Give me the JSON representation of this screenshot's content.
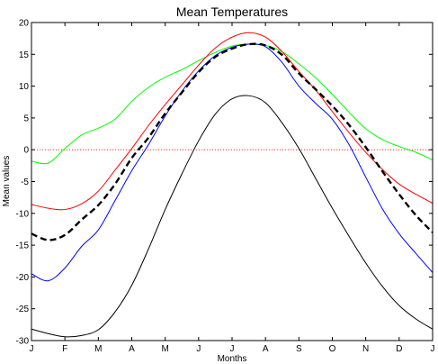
{
  "chart_data": {
    "type": "line",
    "title": "Mean Temperatures",
    "xlabel": "Months",
    "ylabel": "Mean values",
    "xlim": [
      0,
      12
    ],
    "ylim": [
      -30,
      20
    ],
    "x_ticks": [
      {
        "value": 0,
        "label": "J"
      },
      {
        "value": 1,
        "label": "F"
      },
      {
        "value": 2,
        "label": "M"
      },
      {
        "value": 3,
        "label": "A"
      },
      {
        "value": 4,
        "label": "M"
      },
      {
        "value": 5,
        "label": "J"
      },
      {
        "value": 6,
        "label": "J"
      },
      {
        "value": 7,
        "label": "A"
      },
      {
        "value": 8,
        "label": "S"
      },
      {
        "value": 9,
        "label": "O"
      },
      {
        "value": 10,
        "label": "N"
      },
      {
        "value": 11,
        "label": "D"
      },
      {
        "value": 12,
        "label": "J"
      }
    ],
    "y_ticks": [
      20,
      15,
      10,
      5,
      0,
      -5,
      -10,
      -15,
      -20,
      -25,
      -30
    ],
    "grid": false,
    "reference_lines": [
      {
        "y": 0,
        "color": "#ff0000",
        "style": "dotted"
      }
    ],
    "series": [
      {
        "color": "#00ff00",
        "style": "solid",
        "x": [
          0,
          0.5,
          1,
          1.5,
          2,
          2.5,
          3,
          3.5,
          4,
          4.5,
          5,
          5.5,
          6,
          6.5,
          7,
          7.5,
          8,
          8.5,
          9,
          9.5,
          10,
          10.5,
          11,
          11.5,
          12
        ],
        "y": [
          -1.8,
          -2.1,
          0.2,
          2.3,
          3.4,
          4.8,
          7.6,
          9.8,
          11.4,
          12.6,
          14.0,
          15.3,
          16.3,
          16.6,
          16.4,
          15.4,
          13.5,
          11.3,
          8.7,
          5.9,
          3.3,
          1.6,
          0.5,
          -0.4,
          -1.6
        ]
      },
      {
        "color": "#ff0000",
        "style": "solid",
        "x": [
          0,
          0.5,
          1,
          1.5,
          2,
          2.5,
          3,
          3.5,
          4,
          4.5,
          5,
          5.5,
          6,
          6.5,
          7,
          7.5,
          8,
          8.5,
          9,
          9.5,
          10,
          10.5,
          11,
          11.5,
          12
        ],
        "y": [
          -8.6,
          -9.2,
          -9.4,
          -8.5,
          -6.5,
          -3.2,
          0.2,
          3.8,
          7.1,
          10.2,
          13.3,
          16.0,
          17.7,
          18.4,
          17.7,
          15.4,
          12.3,
          9.4,
          6.0,
          2.7,
          -0.4,
          -3.1,
          -5.4,
          -7.0,
          -8.4
        ]
      },
      {
        "color": "#0000ff",
        "style": "solid",
        "x": [
          0,
          0.5,
          1,
          1.5,
          2,
          2.5,
          3,
          3.5,
          4,
          4.5,
          5,
          5.5,
          6,
          6.5,
          7,
          7.5,
          8,
          8.5,
          9,
          9.5,
          10,
          10.5,
          11,
          11.5,
          12
        ],
        "y": [
          -19.5,
          -20.6,
          -18.6,
          -15.2,
          -12.6,
          -8.0,
          -3.3,
          0.8,
          5.3,
          9.2,
          12.4,
          14.8,
          16.1,
          16.6,
          16.2,
          13.7,
          10.0,
          7.3,
          4.8,
          0.8,
          -4.3,
          -9.3,
          -13.2,
          -16.3,
          -19.3
        ]
      },
      {
        "color": "#000000",
        "style": "dashed",
        "x": [
          0,
          0.5,
          1,
          1.5,
          2,
          2.5,
          3,
          3.5,
          4,
          4.5,
          5,
          5.5,
          6,
          6.5,
          7,
          7.5,
          8,
          8.5,
          9,
          9.5,
          10,
          10.5,
          11,
          11.5,
          12
        ],
        "y": [
          -13.2,
          -14.2,
          -13.4,
          -11.0,
          -8.7,
          -5.4,
          -1.3,
          1.9,
          5.7,
          9.0,
          12.2,
          14.6,
          15.9,
          16.6,
          16.4,
          14.9,
          12.0,
          9.5,
          6.9,
          3.9,
          0.4,
          -3.4,
          -7.0,
          -10.3,
          -13.0
        ]
      },
      {
        "color": "#000000",
        "style": "solid",
        "x": [
          0,
          0.5,
          1,
          1.5,
          2,
          2.5,
          3,
          3.5,
          4,
          4.5,
          5,
          5.5,
          6,
          6.5,
          7,
          7.5,
          8,
          8.5,
          9,
          9.5,
          10,
          10.5,
          11,
          11.5,
          12
        ],
        "y": [
          -28.2,
          -28.9,
          -29.4,
          -29.2,
          -28.3,
          -25.5,
          -21.3,
          -15.6,
          -9.4,
          -3.8,
          1.4,
          5.6,
          8.0,
          8.5,
          7.4,
          4.2,
          0.2,
          -4.5,
          -9.2,
          -13.6,
          -17.8,
          -21.5,
          -24.5,
          -26.6,
          -28.2
        ]
      }
    ]
  }
}
